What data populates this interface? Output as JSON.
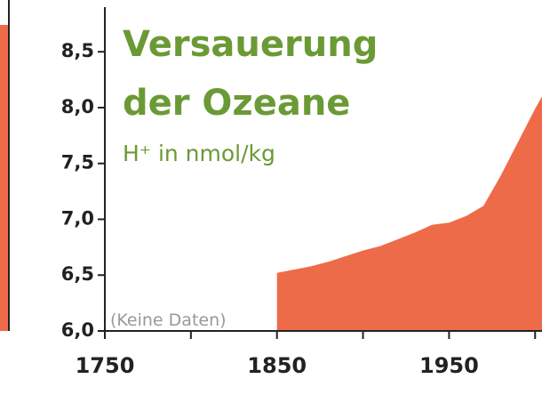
{
  "chart_data": {
    "type": "area",
    "title": [
      "Versauerung",
      "der Ozeane"
    ],
    "subtitle": "H⁺ in nmol/kg",
    "annotation": "(Keine Daten)",
    "color": "#ee6b4a",
    "x": [
      1850,
      1860,
      1870,
      1880,
      1890,
      1900,
      1910,
      1920,
      1930,
      1940,
      1950,
      1960,
      1970,
      1980,
      1990,
      2000,
      2004
    ],
    "values": [
      6.52,
      6.55,
      6.58,
      6.62,
      6.67,
      6.72,
      6.76,
      6.82,
      6.88,
      6.95,
      6.97,
      7.03,
      7.12,
      7.39,
      7.69,
      7.99,
      8.1
    ],
    "xlim": [
      1750,
      2004
    ],
    "xticks": [
      1750,
      1850,
      1950
    ],
    "xminor_ticks": [
      1800,
      1900,
      2000
    ],
    "ylim": [
      6.0,
      8.9
    ],
    "yticks": [
      {
        "value": 6.0,
        "label": "6,0"
      },
      {
        "value": 6.5,
        "label": "6,5"
      },
      {
        "value": 7.0,
        "label": "7,0"
      },
      {
        "value": 7.5,
        "label": "7,5"
      },
      {
        "value": 8.0,
        "label": "8,0"
      },
      {
        "value": 8.5,
        "label": "8,5"
      }
    ]
  }
}
